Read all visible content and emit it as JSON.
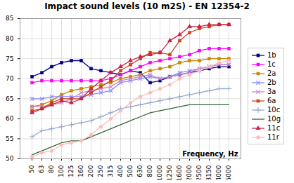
{
  "chart_data": {
    "type": "line",
    "title": "Impact sound levels (10 m2S) - EN 12354-2",
    "xlabel": "Frequency, Hz",
    "categories": [
      "50",
      "63",
      "80",
      "100",
      "125",
      "160",
      "200",
      "250",
      "315",
      "400",
      "500",
      "630",
      "800",
      "1000",
      "1250",
      "1600",
      "2000",
      "2500",
      "3150",
      "4000",
      "5000"
    ],
    "series": [
      {
        "name": "1b",
        "color": "#00008B",
        "marker": "square",
        "values": [
          70.5,
          71.5,
          73.0,
          74.0,
          74.5,
          74.5,
          72.5,
          72.0,
          71.5,
          71.0,
          72.0,
          71.5,
          69.0,
          69.5,
          70.5,
          71.0,
          71.5,
          72.0,
          72.5,
          73.0,
          73.0
        ]
      },
      {
        "name": "1c",
        "color": "#ff00ff",
        "marker": "square",
        "values": [
          69.0,
          69.5,
          69.5,
          69.5,
          69.5,
          69.5,
          69.5,
          69.5,
          70.0,
          71.0,
          72.0,
          73.0,
          74.0,
          74.5,
          75.0,
          75.5,
          76.0,
          77.0,
          77.5,
          77.5,
          77.5
        ]
      },
      {
        "name": "2a",
        "color": "#cc8800",
        "marker": "square",
        "values": [
          63.0,
          63.5,
          64.5,
          66.0,
          67.0,
          67.5,
          68.0,
          68.5,
          69.0,
          70.0,
          70.5,
          71.0,
          72.0,
          72.5,
          73.0,
          74.0,
          74.5,
          74.5,
          75.0,
          75.0,
          75.0
        ]
      },
      {
        "name": "2b",
        "color": "#8888ff",
        "marker": "x",
        "values": [
          65.0,
          65.0,
          65.5,
          65.5,
          65.5,
          65.5,
          66.0,
          66.5,
          67.0,
          69.0,
          69.5,
          70.0,
          70.5,
          70.0,
          70.5,
          71.5,
          72.0,
          72.5,
          73.0,
          73.5,
          73.5
        ]
      },
      {
        "name": "3a",
        "color": "#cc88cc",
        "marker": "x",
        "values": [
          63.0,
          63.0,
          63.5,
          64.0,
          65.0,
          66.5,
          67.0,
          67.5,
          68.0,
          69.5,
          70.0,
          70.5,
          71.0,
          70.0,
          70.5,
          71.0,
          71.5,
          72.5,
          73.0,
          73.5,
          73.5
        ]
      },
      {
        "name": "6a",
        "color": "#cc4422",
        "marker": "square",
        "values": [
          62.0,
          62.5,
          64.0,
          65.0,
          65.0,
          65.0,
          66.5,
          68.0,
          69.5,
          72.0,
          73.5,
          75.0,
          76.5,
          76.5,
          76.0,
          79.5,
          81.5,
          82.5,
          83.0,
          83.5,
          83.5
        ]
      },
      {
        "name": "10c",
        "color": "#99aacc",
        "marker": "plus",
        "values": [
          55.5,
          57.0,
          57.5,
          58.0,
          58.5,
          59.0,
          59.5,
          60.5,
          61.5,
          62.5,
          63.0,
          63.5,
          64.0,
          64.5,
          65.0,
          65.5,
          66.0,
          66.5,
          67.0,
          67.5,
          67.5
        ]
      },
      {
        "name": "10g",
        "color": "#336633",
        "marker": "none",
        "values": [
          51.0,
          52.0,
          53.0,
          54.0,
          54.5,
          54.5,
          55.5,
          56.5,
          57.5,
          58.5,
          59.5,
          60.5,
          61.5,
          62.0,
          62.5,
          63.0,
          63.5,
          63.5,
          63.5,
          63.5,
          63.5
        ]
      },
      {
        "name": "11c",
        "color": "#cc2244",
        "marker": "triangle",
        "values": [
          61.5,
          62.5,
          63.5,
          64.5,
          64.0,
          65.0,
          67.5,
          69.5,
          71.5,
          73.0,
          74.5,
          75.5,
          76.0,
          76.5,
          79.5,
          81.0,
          83.0,
          83.0,
          83.5,
          83.5,
          83.5
        ]
      },
      {
        "name": "11r",
        "color": "#ffbbbb",
        "marker": "circle",
        "values": [
          50.5,
          51.5,
          52.0,
          53.5,
          54.0,
          54.5,
          56.0,
          58.0,
          60.0,
          62.0,
          64.0,
          65.5,
          66.5,
          67.5,
          68.5,
          70.0,
          71.0,
          72.0,
          73.0,
          74.0,
          74.5
        ]
      }
    ],
    "ylim": [
      50,
      85
    ],
    "yticks": [
      50,
      55,
      60,
      65,
      70,
      75,
      80,
      85
    ],
    "grid": true,
    "legend": "right"
  }
}
